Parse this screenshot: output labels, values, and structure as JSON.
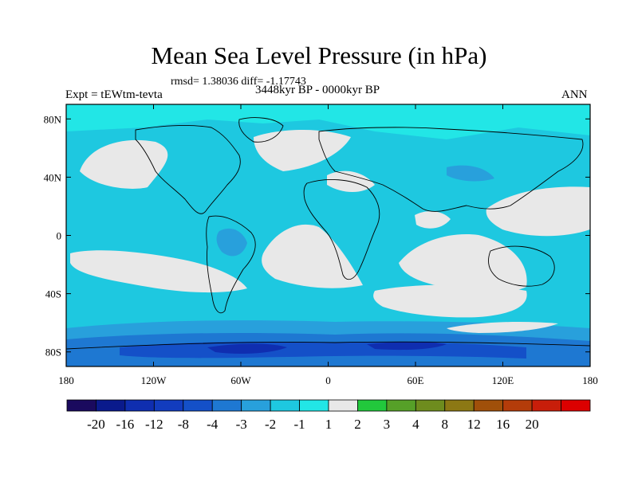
{
  "map": {
    "title": "Mean Sea Level Pressure (in hPa)",
    "stats_line": "rmsd= 1.38036 diff= -1.17743",
    "experiment": "Expt = tEWtm-tevta",
    "period": "3448kyr BP - 0000kyr BP",
    "season": "ANN",
    "lon_ticks": [
      "180",
      "120W",
      "60W",
      "0",
      "60E",
      "120E",
      "180"
    ],
    "lat_ticks": [
      "80N",
      "40N",
      "0",
      "40S",
      "80S"
    ],
    "colorbar": {
      "colors": [
        "#1a0a5e",
        "#0a1a8c",
        "#0f2eb0",
        "#123cbe",
        "#1450c8",
        "#1e78d2",
        "#28a0dc",
        "#1ec8e0",
        "#22e6e6",
        "#e8e8e8",
        "#22c83c",
        "#56a028",
        "#6e8c1e",
        "#8c7814",
        "#a0500a",
        "#b43c0a",
        "#c81e0a",
        "#dc0000"
      ],
      "labels": [
        "-20",
        "-16",
        "-12",
        "-8",
        "-4",
        "-3",
        "-2",
        "-1",
        "1",
        "2",
        "3",
        "4",
        "8",
        "12",
        "16",
        "20"
      ]
    },
    "field_colors": {
      "ocean": "#1ec8e0",
      "neutral": "#e8e8e8",
      "light_blue": "#22e6e6",
      "mid_blue": "#28a0dc",
      "deep_blue": "#1e78d2",
      "darker_blue": "#1450c8",
      "darkest_blue": "#0f2eb0"
    }
  }
}
